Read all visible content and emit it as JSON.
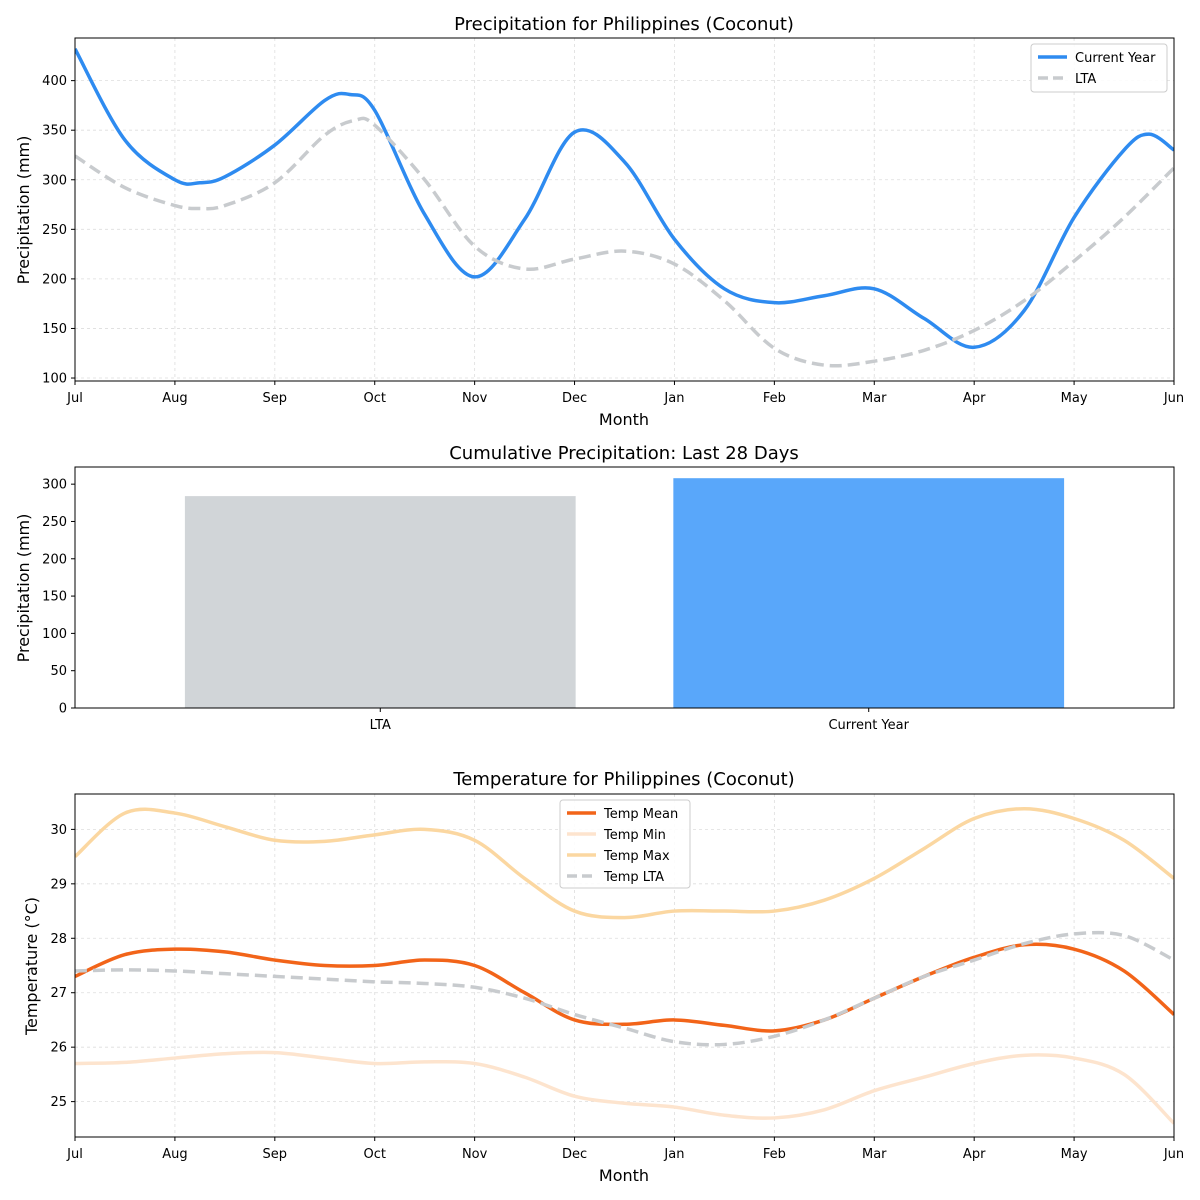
{
  "chart_data": [
    {
      "type": "line",
      "title": "Precipitation for Philippines (Coconut)",
      "xlabel": "Month",
      "ylabel": "Precipitation (mm)",
      "x_ticks": [
        "Jul",
        "Aug",
        "Sep",
        "Oct",
        "Nov",
        "Dec",
        "Jan",
        "Feb",
        "Mar",
        "Apr",
        "May",
        "Jun"
      ],
      "y_ticks": [
        100,
        150,
        200,
        250,
        300,
        350,
        400
      ],
      "xlim": [
        0,
        11
      ],
      "ylim": [
        97,
        443
      ],
      "grid": true,
      "legend": "top-right",
      "series": [
        {
          "name": "Current Year",
          "color": "#2E8BF0",
          "style": "solid",
          "x": [
            0,
            0.5,
            1,
            1.25,
            1.5,
            2,
            2.5,
            2.75,
            3,
            3.5,
            4,
            4.5,
            5,
            5.5,
            6,
            6.5,
            7,
            7.5,
            8,
            8.5,
            9,
            9.5,
            10,
            10.5,
            10.75,
            11
          ],
          "values": [
            432,
            340,
            300,
            297,
            303,
            335,
            380,
            386,
            370,
            265,
            202,
            260,
            348,
            318,
            240,
            190,
            176,
            183,
            190,
            160,
            131,
            168,
            262,
            330,
            346,
            330
          ]
        },
        {
          "name": "LTA",
          "color": "#C8CBCE",
          "style": "dashed",
          "x": [
            0,
            0.5,
            1,
            1.25,
            1.5,
            2,
            2.5,
            2.8,
            3,
            3.5,
            4,
            4.5,
            5,
            5.5,
            6,
            6.5,
            7,
            7.5,
            8,
            8.5,
            9,
            9.5,
            10,
            10.5,
            11
          ],
          "values": [
            324,
            292,
            274,
            271,
            274,
            297,
            345,
            360,
            355,
            300,
            233,
            210,
            220,
            228,
            215,
            178,
            130,
            113,
            117,
            128,
            148,
            178,
            218,
            262,
            312
          ]
        }
      ]
    },
    {
      "type": "bar",
      "title": "Cumulative Precipitation: Last 28 Days",
      "ylabel": "Precipitation (mm)",
      "categories": [
        "LTA",
        "Current Year"
      ],
      "values": [
        284,
        308
      ],
      "colors": [
        "#D1D5D8",
        "#59A7FA"
      ],
      "y_ticks": [
        0,
        50,
        100,
        150,
        200,
        250,
        300
      ],
      "ylim": [
        0,
        323
      ]
    },
    {
      "type": "line",
      "title": "Temperature for Philippines (Coconut)",
      "xlabel": "Month",
      "ylabel": "Temperature (°C)",
      "x_ticks": [
        "Jul",
        "Aug",
        "Sep",
        "Oct",
        "Nov",
        "Dec",
        "Jan",
        "Feb",
        "Mar",
        "Apr",
        "May",
        "Jun"
      ],
      "y_ticks": [
        25,
        26,
        27,
        28,
        29,
        30
      ],
      "xlim": [
        0,
        11
      ],
      "ylim": [
        24.35,
        30.65
      ],
      "grid": true,
      "legend": "top-center",
      "series": [
        {
          "name": "Temp Mean",
          "color": "#F26419",
          "style": "solid",
          "x": [
            0,
            0.5,
            1,
            1.5,
            2,
            2.5,
            3,
            3.5,
            4,
            4.5,
            5,
            5.5,
            6,
            6.5,
            7,
            7.5,
            8,
            8.5,
            9,
            9.5,
            10,
            10.5,
            11
          ],
          "values": [
            27.3,
            27.7,
            27.8,
            27.75,
            27.6,
            27.5,
            27.5,
            27.6,
            27.5,
            27.0,
            26.5,
            26.42,
            26.5,
            26.4,
            26.3,
            26.5,
            26.9,
            27.3,
            27.65,
            27.88,
            27.8,
            27.4,
            26.6
          ]
        },
        {
          "name": "Temp Min",
          "color": "#FDE4CE",
          "style": "solid",
          "x": [
            0,
            0.5,
            1,
            1.5,
            2,
            2.5,
            3,
            3.5,
            4,
            4.5,
            5,
            5.5,
            6,
            6.5,
            7,
            7.5,
            8,
            8.5,
            9,
            9.5,
            10,
            10.5,
            11
          ],
          "values": [
            25.7,
            25.72,
            25.8,
            25.88,
            25.9,
            25.8,
            25.7,
            25.73,
            25.7,
            25.45,
            25.1,
            24.97,
            24.9,
            24.75,
            24.7,
            24.85,
            25.2,
            25.45,
            25.7,
            25.85,
            25.8,
            25.5,
            24.6
          ]
        },
        {
          "name": "Temp Max",
          "color": "#FBD7A1",
          "style": "solid",
          "x": [
            0,
            0.5,
            1,
            1.5,
            2,
            2.5,
            3,
            3.5,
            4,
            4.5,
            5,
            5.5,
            6,
            6.5,
            7,
            7.5,
            8,
            8.5,
            9,
            9.5,
            10,
            10.5,
            11
          ],
          "values": [
            29.5,
            30.3,
            30.3,
            30.05,
            29.8,
            29.78,
            29.9,
            30.0,
            29.8,
            29.1,
            28.5,
            28.38,
            28.5,
            28.5,
            28.5,
            28.7,
            29.1,
            29.65,
            30.2,
            30.38,
            30.2,
            29.8,
            29.1
          ]
        },
        {
          "name": "Temp LTA",
          "color": "#C8CBCE",
          "style": "dashed",
          "x": [
            0,
            0.5,
            1,
            1.5,
            2,
            2.5,
            3,
            3.5,
            4,
            4.5,
            5,
            5.5,
            6,
            6.5,
            7,
            7.5,
            8,
            8.5,
            9,
            9.5,
            10,
            10.5,
            11
          ],
          "values": [
            27.4,
            27.42,
            27.4,
            27.35,
            27.3,
            27.25,
            27.2,
            27.17,
            27.1,
            26.9,
            26.6,
            26.35,
            26.1,
            26.05,
            26.2,
            26.5,
            26.9,
            27.3,
            27.6,
            27.9,
            28.08,
            28.05,
            27.6
          ]
        }
      ]
    }
  ]
}
